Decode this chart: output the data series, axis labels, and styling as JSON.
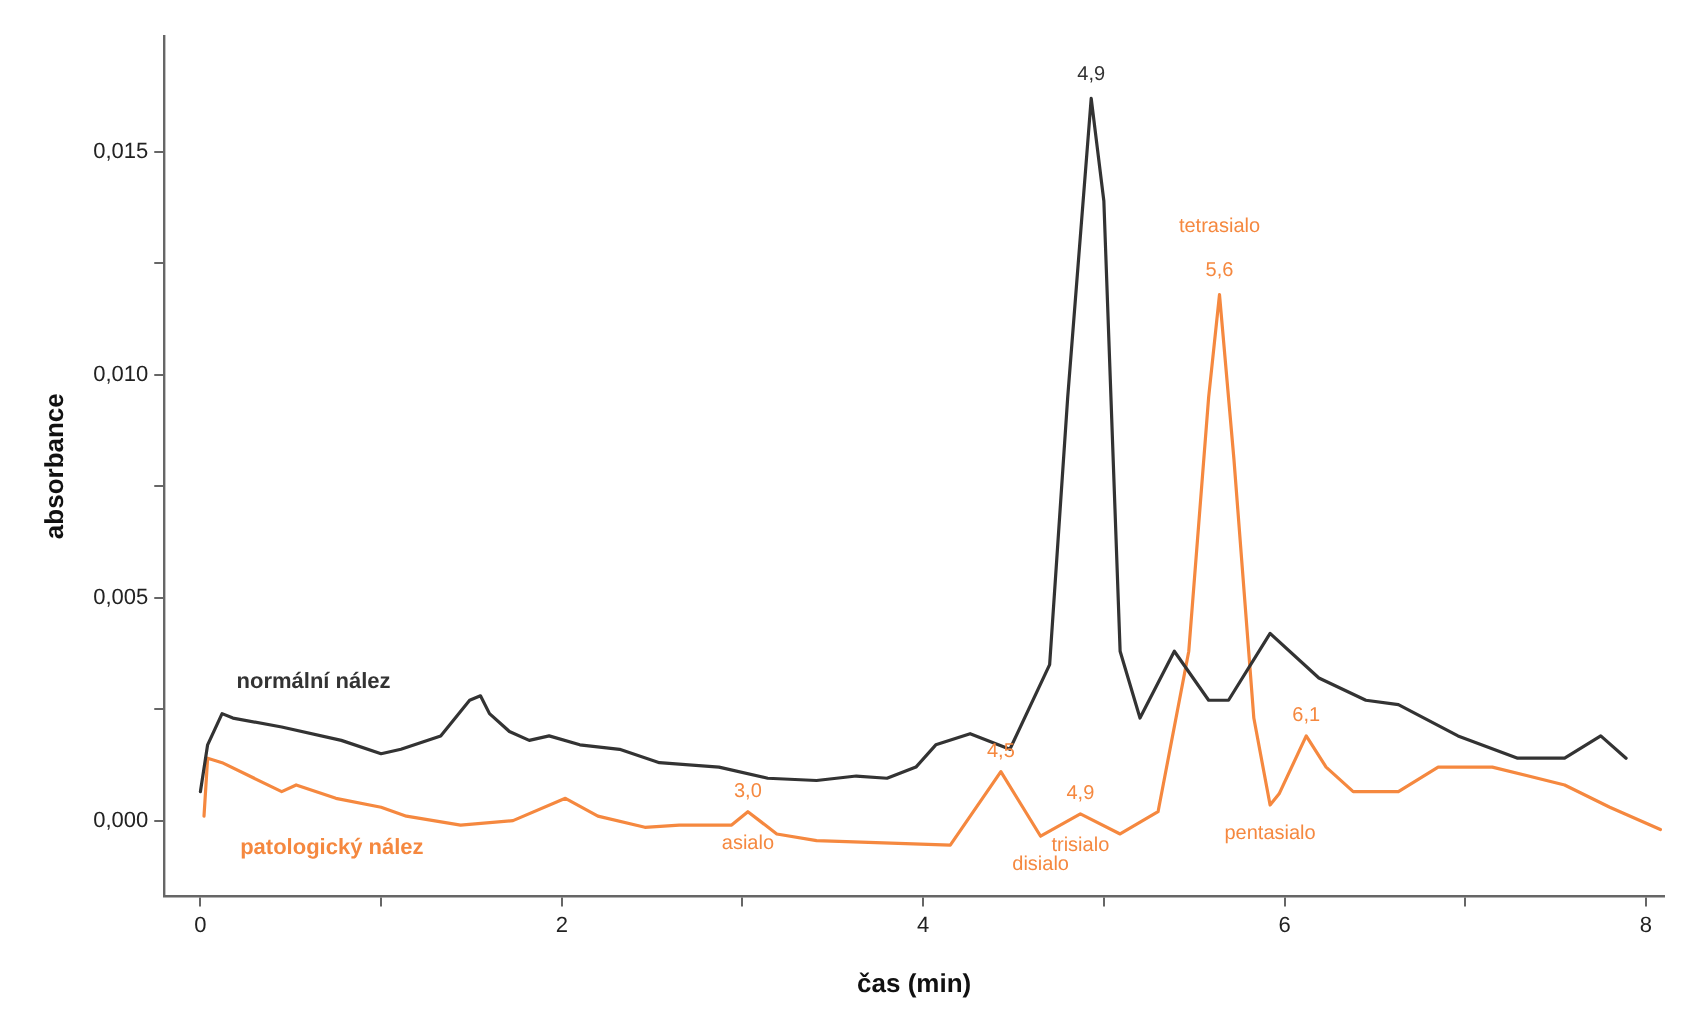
{
  "chart_data": {
    "type": "line",
    "xlabel": "čas (min)",
    "ylabel": "absorbance",
    "xlim": [
      -0.2,
      8.1
    ],
    "ylim": [
      -0.0017,
      0.0176
    ],
    "xticks": [
      0,
      {
        "value": 1,
        "label": null
      },
      2,
      {
        "value": 3,
        "label": null
      },
      4,
      {
        "value": 5,
        "label": null
      },
      6,
      {
        "value": 7,
        "label": null
      },
      8
    ],
    "yticks": [
      {
        "value": 0,
        "label": "0,000"
      },
      {
        "value": 0.0025,
        "label": null
      },
      {
        "value": 0.005,
        "label": "0,005"
      },
      {
        "value": 0.0075,
        "label": null
      },
      {
        "value": 0.01,
        "label": "0,010"
      },
      {
        "value": 0.0125,
        "label": null
      },
      {
        "value": 0.015,
        "label": "0,015"
      }
    ],
    "grid": false,
    "legend": false,
    "marker": "none",
    "line_style": "solid",
    "series": [
      {
        "name": "normální nález",
        "color": "#333333",
        "x": [
          0,
          0.04,
          0.12,
          0.18,
          0.45,
          0.78,
          1.0,
          1.11,
          1.33,
          1.49,
          1.55,
          1.6,
          1.71,
          1.82,
          1.93,
          2.1,
          2.32,
          2.54,
          2.87,
          3.14,
          3.41,
          3.63,
          3.8,
          3.96,
          4.07,
          4.26,
          4.48,
          4.7,
          4.8,
          4.93,
          5.0,
          5.09,
          5.2,
          5.39,
          5.58,
          5.69,
          5.92,
          6.19,
          6.45,
          6.63,
          6.96,
          7.29,
          7.55,
          7.75,
          7.89
        ],
        "values": [
          0.00065,
          0.0017,
          0.0024,
          0.0023,
          0.0021,
          0.0018,
          0.0015,
          0.0016,
          0.0019,
          0.0027,
          0.0028,
          0.0024,
          0.002,
          0.0018,
          0.0019,
          0.0017,
          0.0016,
          0.0013,
          0.0012,
          0.00095,
          0.0009,
          0.001,
          0.00095,
          0.0012,
          0.0017,
          0.00195,
          0.0016,
          0.0035,
          0.0095,
          0.0162,
          0.0139,
          0.0038,
          0.0023,
          0.0038,
          0.0027,
          0.0027,
          0.0042,
          0.0032,
          0.0027,
          0.0026,
          0.0019,
          0.0014,
          0.0014,
          0.0019,
          0.0014
        ]
      },
      {
        "name": "patologický nález",
        "color": "#f5883f",
        "x": [
          0.02,
          0.04,
          0.12,
          0.45,
          0.53,
          0.75,
          1.0,
          1.14,
          1.44,
          1.73,
          2.02,
          2.2,
          2.46,
          2.65,
          2.94,
          3.03,
          3.19,
          3.41,
          4.15,
          4.43,
          4.65,
          4.87,
          5.09,
          5.3,
          5.47,
          5.58,
          5.64,
          5.72,
          5.83,
          5.92,
          5.97,
          6.12,
          6.23,
          6.38,
          6.63,
          6.85,
          7.15,
          7.55,
          7.8,
          8.08
        ],
        "values": [
          0.0001,
          0.0014,
          0.0013,
          0.00065,
          0.0008,
          0.0005,
          0.0003,
          0.0001,
          -0.0001,
          0,
          0.0005,
          0.0001,
          -0.00015,
          -0.0001,
          -0.0001,
          0.0002,
          -0.0003,
          -0.00045,
          -0.00055,
          0.0011,
          -0.00035,
          0.00015,
          -0.0003,
          0.0002,
          0.0038,
          0.0095,
          0.0118,
          0.0081,
          0.0023,
          0.00035,
          0.0006,
          0.0019,
          0.0012,
          0.00065,
          0.00065,
          0.0012,
          0.0012,
          0.0008,
          0.0003,
          -0.0002
        ]
      }
    ],
    "annotations": [
      {
        "text": "4,9",
        "x": 4.93,
        "y": 0.0162
      },
      {
        "text": "3,0",
        "x": 3.03,
        "y": 0.0002
      },
      {
        "text": "asialo",
        "x": 3.03,
        "y": 0.0002
      },
      {
        "text": "4,5",
        "x": 4.43,
        "y": 0.0011
      },
      {
        "text": "disialo",
        "x": 4.65,
        "y": -0.00035
      },
      {
        "text": "4,9",
        "x": 4.87,
        "y": 0.00015
      },
      {
        "text": "trisialo",
        "x": 4.87,
        "y": 0.00015
      },
      {
        "text": "tetrasialo",
        "x": 5.64,
        "y": 0.0118
      },
      {
        "text": "5,6",
        "x": 5.64,
        "y": 0.0118
      },
      {
        "text": "6,1",
        "x": 6.12,
        "y": 0.0019
      },
      {
        "text": "pentasialo",
        "x": 5.92,
        "y": 0.00035
      }
    ]
  }
}
